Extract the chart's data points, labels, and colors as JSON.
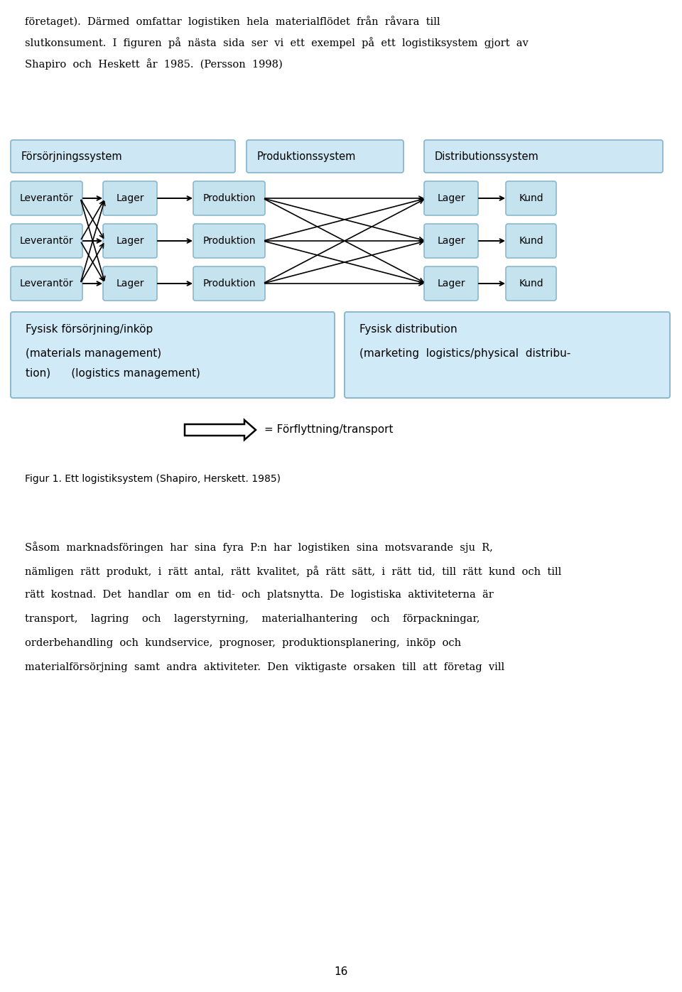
{
  "bg_color": "#ffffff",
  "box_fill": "#c5e3ef",
  "box_edge": "#8bb8cc",
  "hdr_fill": "#cde8f4",
  "hdr_edge": "#8bb8cc",
  "btm_fill": "#d0eaf8",
  "btm_edge": "#8bb8cc",
  "top_text": [
    [
      "företaget).  Därmed  omfattar  logistiken  hela  materialflödet  från  råvara  till",
      false
    ],
    [
      "slutkonsument.  I  figuren  på  nästa  sida  ser  vi  ett  exempel  på  ett  logistiksystem  gjort  av",
      false
    ],
    [
      "Shapiro  och  Heskett  år  1985.  (Persson  1998)",
      false
    ]
  ],
  "hdr_labels": [
    "Försörjningssystem",
    "Produktionssystem",
    "Distributionssystem"
  ],
  "row_labels": [
    "Leverantör",
    "Lager",
    "Produktion",
    "Lager",
    "Kund"
  ],
  "bottom_left_title": "Fysisk försörjning/inköp",
  "bottom_left_line2": "(materials management)",
  "bottom_left_line3": "tion)      (logistics management)",
  "bottom_right_title": "Fysisk distribution",
  "bottom_right_line2": "(marketing  logistics/physical  distribu-",
  "arrow_label": "= Förflyttning/transport",
  "figur_caption": "Figur 1. Ett logistiksystem (Shapiro, Herskett. 1985)",
  "para_lines": [
    "Såsom  marknadsföringen  har  sina  fyra  P:n  har  logistiken  sina  motsvarande  sju  R,",
    "nämligen  rätt  produkt,  i  rätt  antal,  rätt  kvalitet,  på  rätt  sätt,  i  rätt  tid,  till  rätt  kund  och  till",
    "rätt  kostnad.  Det  handlar  om  en  tid-  och  platsnytta.  De  logistiska  aktiviteterna  är",
    "transport,    lagring    och    lagerstyrning,    materialhantering    och    förpackningar,",
    "orderbehandling  och  kundservice,  prognoser,  produktionsplanering,  inköp  och",
    "materialförsörjning  samt  andra  aktiviteter.  Den  viktigaste  orsaken  till  att  företag  vill"
  ],
  "page_number": "16"
}
